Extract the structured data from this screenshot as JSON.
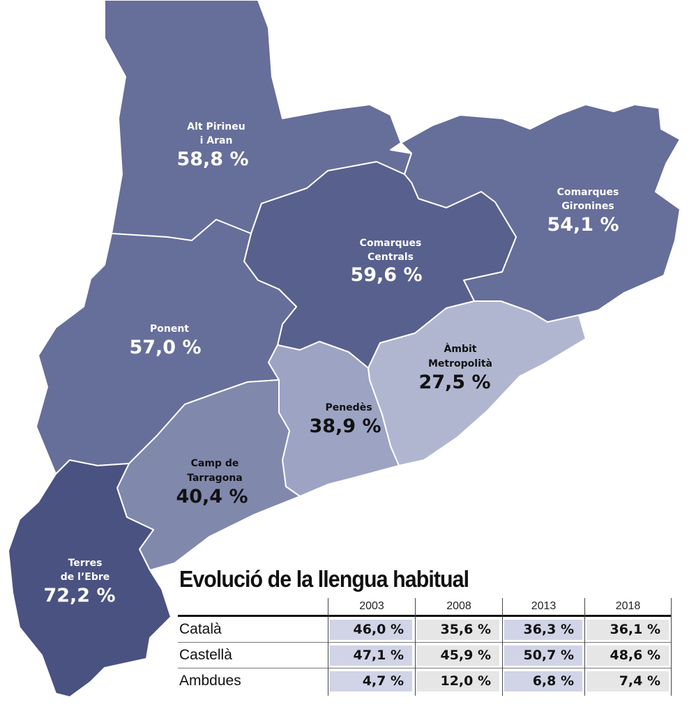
{
  "colors": {
    "alt_pirineu": "#666e9a",
    "comarques_gironines": "#666e9a",
    "ponent": "#666e9a",
    "comarques_centrals": "#58608d",
    "terres_ebre": "#4a5282",
    "camp_tarragona": "#8088ac",
    "penedes": "#9da3c3",
    "ambit_metropolita": "#b1b6d0",
    "table_blue_cell": "#d1d4e6",
    "table_grey_cell": "#e6e6e6"
  },
  "map": {
    "regions": [
      {
        "name_line1": "Alt Pirineu",
        "name_line2": "i Aran",
        "value": "58,8 %"
      },
      {
        "name_line1": "Comarques",
        "name_line2": "Gironines",
        "value": "54,1 %"
      },
      {
        "name_line1": "Comarques",
        "name_line2": "Centrals",
        "value": "59,6 %"
      },
      {
        "name_line1": "Ponent",
        "name_line2": "",
        "value": "57,0 %"
      },
      {
        "name_line1": "Àmbit",
        "name_line2": "Metropolità",
        "value": "27,5 %"
      },
      {
        "name_line1": "Penedès",
        "name_line2": "",
        "value": "38,9 %"
      },
      {
        "name_line1": "Camp de",
        "name_line2": "Tarragona",
        "value": "40,4 %"
      },
      {
        "name_line1": "Terres",
        "name_line2": "de l’Ebre",
        "value": "72,2 %"
      }
    ]
  },
  "table": {
    "title": "Evolució de la llengua habitual",
    "years": [
      "2003",
      "2008",
      "2013",
      "2018"
    ],
    "rows": [
      {
        "label": "Català",
        "values": [
          "46,0 %",
          "35,6 %",
          "36,3 %",
          "36,1 %"
        ]
      },
      {
        "label": "Castellà",
        "values": [
          "47,1 %",
          "45,9 %",
          "50,7 %",
          "48,6 %"
        ]
      },
      {
        "label": "Ambdues",
        "values": [
          "4,7 %",
          "12,0 %",
          "6,8 %",
          "7,4 %"
        ]
      }
    ]
  }
}
